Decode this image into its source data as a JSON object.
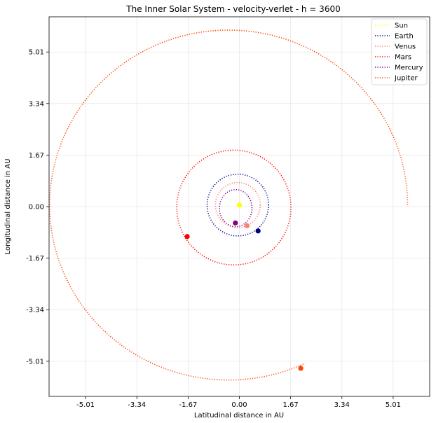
{
  "chart_data": {
    "type": "line",
    "title": "The Inner Solar System - velocity-verlet - h = 3600",
    "xlabel": "Latitudinal distance in AU",
    "ylabel": "Longitudinal distance in AU",
    "xlim": [
      -6.2,
      6.2
    ],
    "ylim": [
      -6.15,
      6.15
    ],
    "grid": true,
    "legend_position": "top-right",
    "xticks": [
      -5.01,
      -3.34,
      -1.67,
      0.0,
      1.67,
      3.34,
      5.01
    ],
    "xtick_labels": [
      "-5.01",
      "-3.34",
      "-1.67",
      "0.00",
      "1.67",
      "3.34",
      "5.01"
    ],
    "yticks": [
      -5.01,
      -3.34,
      -1.67,
      0.0,
      1.67,
      3.34,
      5.01
    ],
    "ytick_labels": [
      "-5.01",
      "-3.34",
      "-1.67",
      "0.00",
      "1.67",
      "3.34",
      "5.01"
    ],
    "series": [
      {
        "name": "Sun",
        "color": "#ffff00",
        "orbit": {
          "cx": 0.0,
          "cy": 0.05,
          "rx": 0.0,
          "ry": 0.0,
          "turns": 0
        },
        "final_position": [
          0.0,
          0.05
        ]
      },
      {
        "name": "Earth",
        "color": "#00008b",
        "orbit": {
          "cx": -0.05,
          "cy": 0.05,
          "rx": 1.0,
          "ry": 1.0,
          "turns": 1
        },
        "final_position": [
          0.61,
          -0.79
        ]
      },
      {
        "name": "Venus",
        "color": "#fa8072",
        "orbit": {
          "cx": -0.05,
          "cy": 0.05,
          "rx": 0.73,
          "ry": 0.73,
          "turns": 1
        },
        "final_position": [
          0.25,
          -0.62
        ]
      },
      {
        "name": "Mars",
        "color": "#ff0000",
        "orbit": {
          "cx": -0.18,
          "cy": -0.03,
          "rx": 1.86,
          "ry": 1.86,
          "turns": 1
        },
        "final_position": [
          -1.7,
          -0.97
        ]
      },
      {
        "name": "Mercury",
        "color": "#800080",
        "orbit": {
          "cx": -0.12,
          "cy": -0.05,
          "rx": 0.53,
          "ry": 0.6,
          "turns": 1
        },
        "final_position": [
          -0.13,
          -0.53
        ]
      },
      {
        "name": "Jupiter",
        "color": "#ff4500",
        "orbit": {
          "cx": -0.35,
          "cy": 0.05,
          "rx": 5.83,
          "ry": 5.67,
          "turns": 0.82,
          "start_angle": 0.0
        },
        "final_position": [
          2.0,
          -5.24
        ]
      }
    ]
  }
}
